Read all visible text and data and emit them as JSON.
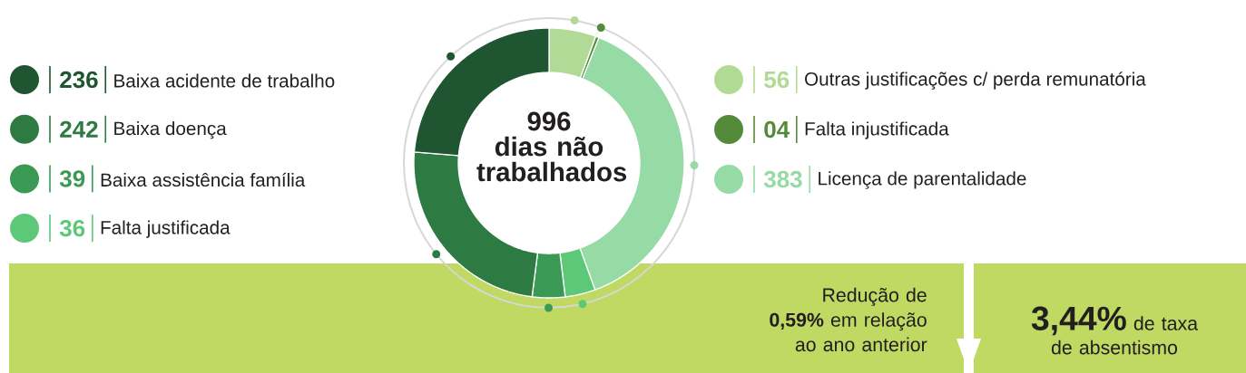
{
  "chart_data": {
    "type": "donut",
    "title": "996 dias não trabalhados",
    "categories": [
      "Outras justificações c/ perda remunatória",
      "Falta injustificada",
      "Licença de parentalidade",
      "Falta justificada",
      "Baixa assistência família",
      "Baixa doença",
      "Baixa acidente de trabalho"
    ],
    "values": [
      56,
      4,
      383,
      36,
      39,
      242,
      236
    ],
    "value_labels": [
      "56",
      "04",
      "383",
      "36",
      "39",
      "242",
      "236"
    ],
    "colors": [
      "#b0da96",
      "#548b3a",
      "#96dba6",
      "#5cc878",
      "#3a9a55",
      "#2e7a43",
      "#1f5631"
    ],
    "legend": "top right",
    "annotations": [
      "Redução de **0,59%** em relação ao ano anterior",
      "**3,44%** de taxa de absentismo"
    ]
  }
}
